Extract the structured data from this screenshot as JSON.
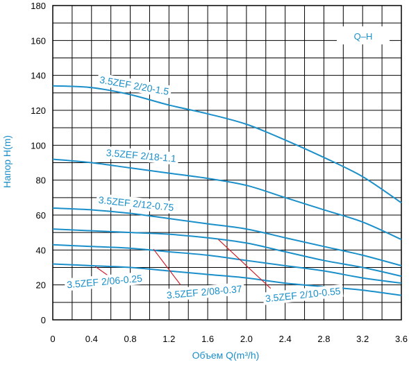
{
  "chart_data": {
    "type": "line",
    "title": "",
    "xlabel": "Объем Q(m³/h)",
    "ylabel": "Напор H(m)",
    "xlim": [
      0,
      3.6
    ],
    "ylim": [
      0,
      180
    ],
    "x_ticks": [
      "0",
      "0.4",
      "0.8",
      "1.2",
      "1.6",
      "2.0",
      "2.4",
      "2.8",
      "3.2",
      "3.6"
    ],
    "y_ticks": [
      "0",
      "20",
      "40",
      "60",
      "80",
      "100",
      "120",
      "140",
      "160",
      "180"
    ],
    "grid": true,
    "legend_label": "Q–H",
    "line_color": "#1a8fc9",
    "leader_color": "#d0202a",
    "series": [
      {
        "name": "3.5ZEF 2/20-1.5",
        "x": [
          0,
          0.4,
          0.8,
          1.2,
          1.6,
          2.0,
          2.4,
          2.8,
          3.2,
          3.6
        ],
        "y": [
          134,
          133,
          129,
          123,
          118,
          112,
          103,
          93,
          82,
          67
        ]
      },
      {
        "name": "3.5ZEF 2/18-1.1",
        "x": [
          0,
          0.4,
          0.8,
          1.2,
          1.6,
          2.0,
          2.4,
          2.8,
          3.2,
          3.6
        ],
        "y": [
          92,
          90,
          87,
          84,
          81,
          77,
          70,
          63,
          56,
          46
        ]
      },
      {
        "name": "3.5ZEF 2/12-0.75",
        "x": [
          0,
          0.4,
          0.8,
          1.2,
          1.6,
          2.0,
          2.4,
          2.8,
          3.2,
          3.6
        ],
        "y": [
          64,
          63,
          61,
          58,
          55,
          52,
          47,
          42,
          37,
          31
        ]
      },
      {
        "name": "3.5ZEF 2/10-0.55",
        "x": [
          0,
          0.4,
          0.8,
          1.2,
          1.6,
          2.0,
          2.4,
          2.8,
          3.2,
          3.6
        ],
        "y": [
          52,
          51,
          50,
          49,
          47,
          44,
          39,
          34,
          30,
          25
        ]
      },
      {
        "name": "3.5ZEF 2/08-0.37",
        "x": [
          0,
          0.4,
          0.8,
          1.2,
          1.6,
          2.0,
          2.4,
          2.8,
          3.2,
          3.6
        ],
        "y": [
          43,
          42,
          41,
          39,
          37,
          34,
          31,
          28,
          24,
          21
        ]
      },
      {
        "name": "3.5ZEF 2/06-0.25",
        "x": [
          0,
          0.4,
          0.8,
          1.2,
          1.6,
          2.0,
          2.4,
          2.8,
          3.2,
          3.6
        ],
        "y": [
          32,
          31,
          30,
          28,
          26,
          24,
          21,
          19,
          17,
          14
        ]
      }
    ]
  }
}
